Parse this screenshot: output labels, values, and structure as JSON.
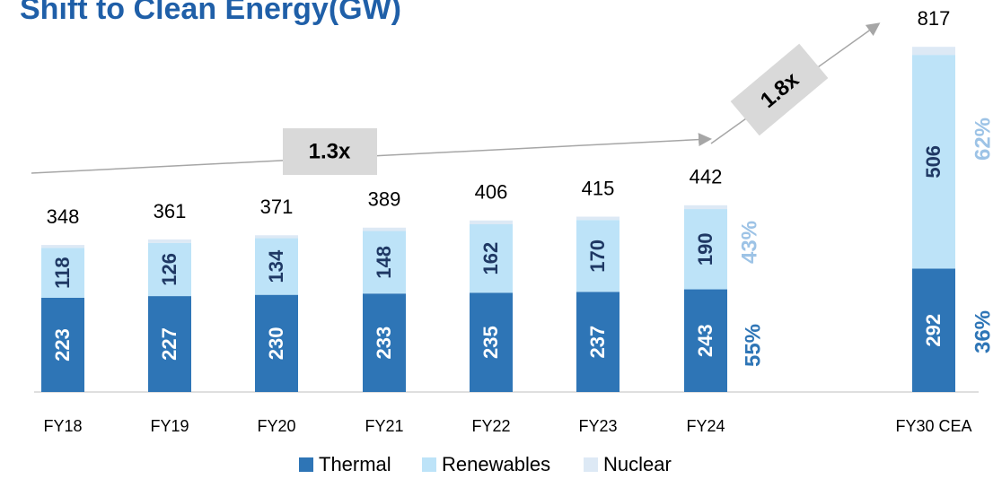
{
  "chart_data": {
    "type": "stacked_bar",
    "title": "Shift to Clean Energy(GW)",
    "categories": [
      "FY18",
      "FY19",
      "FY20",
      "FY21",
      "FY22",
      "FY23",
      "FY24",
      "FY30 CEA"
    ],
    "series": [
      {
        "name": "Thermal",
        "color": "#2e75b6",
        "values": [
          223,
          227,
          230,
          233,
          235,
          237,
          243,
          292
        ]
      },
      {
        "name": "Renewables",
        "color": "#bde3f8",
        "values": [
          118,
          126,
          134,
          148,
          162,
          170,
          190,
          506
        ]
      },
      {
        "name": "Nuclear",
        "color": "#dde9f5",
        "values": [
          7,
          8,
          7,
          8,
          9,
          8,
          9,
          19
        ]
      }
    ],
    "totals": [
      348,
      361,
      371,
      389,
      406,
      415,
      442,
      817
    ],
    "annotations": [
      "1.3x",
      "1.8x"
    ],
    "percent_labels": [
      [
        "55%",
        "43%"
      ],
      [
        "36%",
        "62%"
      ]
    ],
    "legend": "bottom"
  }
}
